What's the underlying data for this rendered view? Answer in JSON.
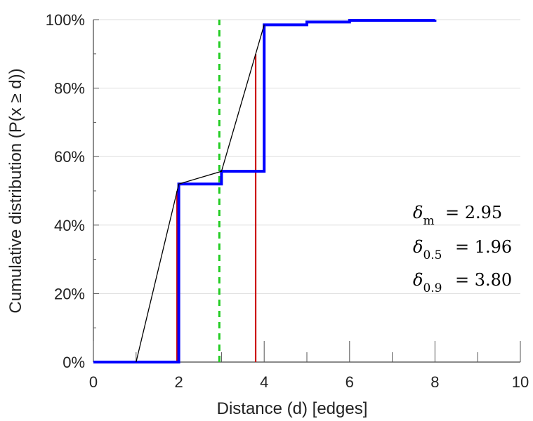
{
  "chart_data": {
    "type": "line",
    "xlabel": "Distance (d) [edges]",
    "ylabel": "Cumulative distribution (P(x ≥ d))",
    "xlim": [
      0,
      10
    ],
    "ylim": [
      0,
      100
    ],
    "x_ticks": [
      0,
      2,
      4,
      6,
      8,
      10
    ],
    "y_ticks": [
      0,
      20,
      40,
      60,
      80,
      100
    ],
    "y_tick_format": "percent",
    "grid": "horizontal",
    "series": [
      {
        "style": "step",
        "color": "#0000ff",
        "x": [
          0,
          2,
          3,
          4,
          5,
          6,
          8
        ],
        "y": [
          0,
          52,
          55.7,
          98.5,
          99.3,
          99.8,
          100
        ]
      },
      {
        "style": "line",
        "color": "#000000",
        "x": [
          1,
          2,
          3,
          4
        ],
        "y": [
          0,
          52,
          55.7,
          98.5
        ]
      }
    ],
    "vertical_lines": [
      {
        "x": 2.95,
        "style": "dashed",
        "color": "#22cc22"
      },
      {
        "x": 1.96,
        "style": "solid",
        "color": "#cc0000"
      },
      {
        "x": 3.8,
        "style": "solid",
        "color": "#cc0000"
      }
    ],
    "annotations": [
      {
        "symbol": "δ",
        "sub": "m",
        "text": "= 2.95",
        "value": 2.95
      },
      {
        "symbol": "δ",
        "sub": "0.5",
        "text": "= 1.96",
        "value": 1.96
      },
      {
        "symbol": "δ",
        "sub": "0.9",
        "text": "= 3.80",
        "value": 3.8
      }
    ]
  }
}
